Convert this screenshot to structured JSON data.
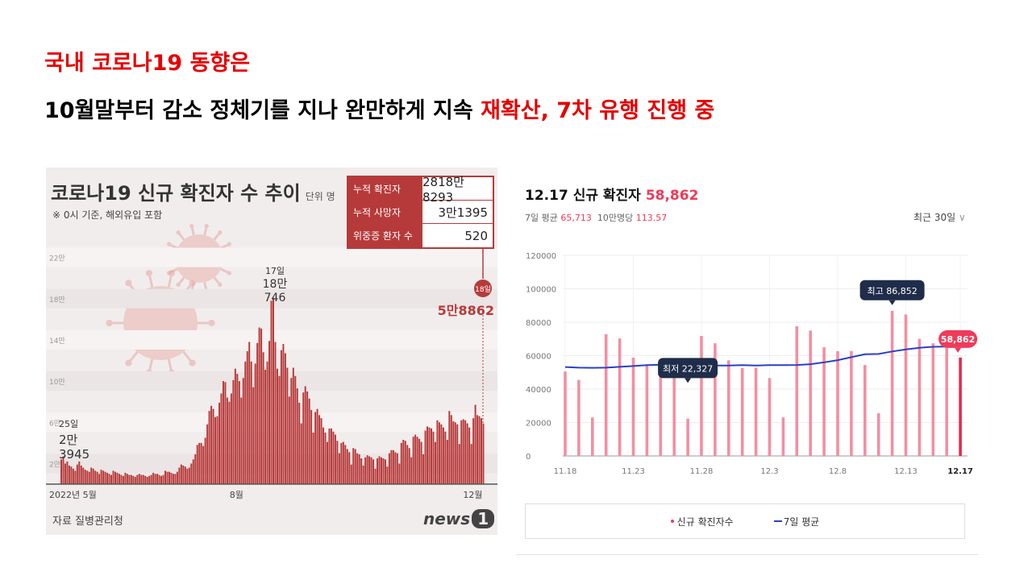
{
  "headline": {
    "line1": "국내 코로나19 동향은",
    "line2_black": "10월말부터 감소 정체기를 지나 완만하게 지속 ",
    "line2_red": "재확산, 7차 유행 진행 중"
  },
  "left_panel": {
    "title": "코로나19 신규 확진자 수 추이",
    "unit": "단위 명",
    "note": "※ 0시 기준, 해외유입 포함",
    "stats": [
      {
        "label": "누적 확진자",
        "value": "2818만8293"
      },
      {
        "label": "누적 사망자",
        "value": "3만1395"
      },
      {
        "label": "위중증 환자 수",
        "value": "520"
      }
    ],
    "source": "자료 질병관리청",
    "logo_text": "news",
    "logo_num": "1",
    "colors": {
      "bars": "#b73a3a",
      "background": "#f1eded"
    }
  },
  "right_panel": {
    "title": "12.17 신규 확진자",
    "title_value": "58,862",
    "sub_label1": "7일 평균",
    "sub_value1": "65,713",
    "sub_label2": "10만명당",
    "sub_value2": "113.57",
    "range_label": "최근 30일",
    "legend_bar": "신규 확진자수",
    "legend_line": "7일 평균",
    "colors": {
      "bar": "#f48ea2",
      "bar_highlight": "#e8284d",
      "avg_line": "#2a3fc9"
    }
  },
  "chart_data": [
    {
      "type": "bar",
      "title": "코로나19 신규 확진자 수 추이",
      "unit": "명",
      "ytick_labels": [
        "2만",
        "6만",
        "10만",
        "14만",
        "18만",
        "22만"
      ],
      "ytick_values": [
        20000,
        60000,
        100000,
        140000,
        180000,
        220000
      ],
      "ylim": [
        0,
        240000
      ],
      "xtick_labels": [
        "2022년 5월",
        "8월",
        "12월"
      ],
      "annotations": [
        {
          "label": "25일",
          "value_text": "2만\n3945",
          "value": 23945
        },
        {
          "label": "17일",
          "value_text": "18만\n746",
          "value": 180746
        },
        {
          "label": "18일",
          "value_text": "5만8862",
          "value": 58862
        }
      ],
      "values": [
        24000,
        27000,
        20000,
        22000,
        18000,
        17000,
        15000,
        13000,
        19000,
        22000,
        18000,
        16000,
        14000,
        13000,
        12000,
        16000,
        15000,
        13000,
        12000,
        10000,
        14000,
        13000,
        12000,
        11000,
        10000,
        9000,
        13000,
        12000,
        11000,
        10000,
        9000,
        8000,
        11000,
        10000,
        9000,
        9000,
        8000,
        7000,
        9000,
        10000,
        9000,
        9000,
        8000,
        7000,
        8000,
        9000,
        11000,
        10000,
        10000,
        9000,
        8000,
        9000,
        13000,
        12000,
        12000,
        11000,
        10000,
        10000,
        12000,
        16000,
        19000,
        18000,
        17000,
        15000,
        16000,
        20000,
        24000,
        29000,
        38000,
        40000,
        40000,
        37000,
        45000,
        58000,
        71000,
        76000,
        73000,
        65000,
        66000,
        79000,
        88000,
        100000,
        99000,
        84000,
        80000,
        88000,
        101000,
        112000,
        107000,
        100000,
        84000,
        103000,
        119000,
        129000,
        138000,
        119000,
        94000,
        117000,
        137000,
        152000,
        151000,
        128000,
        111000,
        119000,
        139000,
        178000,
        180746,
        138000,
        112000,
        105000,
        130000,
        136000,
        127000,
        113000,
        85000,
        103000,
        113000,
        105000,
        93000,
        79000,
        59000,
        89000,
        95000,
        90000,
        83000,
        72000,
        50000,
        70000,
        73000,
        67000,
        64000,
        55000,
        50000,
        41000,
        54000,
        54000,
        51000,
        48000,
        42000,
        30000,
        40000,
        41000,
        38000,
        34000,
        31000,
        19000,
        35000,
        34000,
        30000,
        29000,
        25000,
        18000,
        26000,
        28000,
        27000,
        26000,
        24000,
        15000,
        25000,
        27000,
        26000,
        25000,
        24000,
        17000,
        30000,
        33000,
        33000,
        31000,
        30000,
        20000,
        40000,
        43000,
        42000,
        38000,
        35000,
        26000,
        46000,
        48000,
        46000,
        44000,
        41000,
        29000,
        52000,
        56000,
        55000,
        54000,
        51000,
        41000,
        62000,
        60000,
        58000,
        55000,
        51000,
        43000,
        71000,
        67000,
        61000,
        60000,
        58000,
        39000,
        62000,
        63000,
        62000,
        59000,
        55000,
        39000,
        64000,
        77000,
        67000,
        66000,
        64000,
        58862
      ]
    },
    {
      "type": "bar",
      "title": "12.17 신규 확진자",
      "categories": [
        "11.18",
        "11.19",
        "11.20",
        "11.21",
        "11.22",
        "11.23",
        "11.24",
        "11.25",
        "11.26",
        "11.27",
        "11.28",
        "11.29",
        "11.30",
        "12.1",
        "12.2",
        "12.3",
        "12.4",
        "12.5",
        "12.6",
        "12.7",
        "12.8",
        "12.9",
        "12.10",
        "12.11",
        "12.12",
        "12.13",
        "12.14",
        "12.15",
        "12.16",
        "12.17"
      ],
      "xtick_labels": [
        "11.18",
        "11.23",
        "11.28",
        "12.3",
        "12.8",
        "12.13",
        "12.17"
      ],
      "yticks": [
        0,
        20000,
        40000,
        60000,
        80000,
        100000,
        120000
      ],
      "ylim": [
        0,
        120000
      ],
      "series": [
        {
          "name": "신규 확진자수",
          "values": [
            50500,
            45500,
            23000,
            72800,
            70300,
            58800,
            54000,
            52800,
            47000,
            22327,
            71800,
            67400,
            57200,
            52600,
            52800,
            46600,
            23000,
            77600,
            75000,
            65000,
            62700,
            62800,
            54400,
            25600,
            86852,
            84600,
            70100,
            67400,
            66200,
            58862
          ]
        },
        {
          "name": "7일 평균",
          "values": [
            53200,
            52800,
            52700,
            52800,
            53300,
            53800,
            54300,
            54600,
            54300,
            54600,
            54300,
            54100,
            54100,
            54300,
            54100,
            54300,
            54300,
            54400,
            54900,
            56000,
            57300,
            59100,
            60800,
            61000,
            62500,
            63700,
            64700,
            65300,
            65400,
            65713
          ]
        }
      ],
      "annotations": [
        {
          "label": "최고 86,852",
          "category": "12.12"
        },
        {
          "label": "최저 22,327",
          "category": "11.27"
        },
        {
          "label": "58,862",
          "category": "12.17"
        }
      ],
      "grid": true
    }
  ]
}
